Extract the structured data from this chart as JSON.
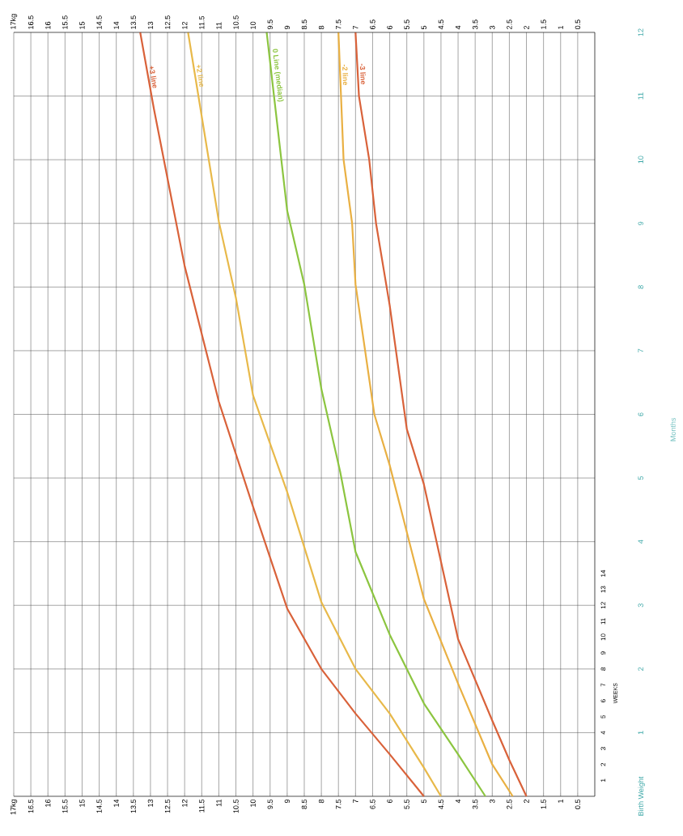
{
  "chart_data": {
    "type": "line",
    "ylabel": "Months",
    "y2label": "WEEKS",
    "xlim": [
      17,
      0
    ],
    "xticks": [
      {
        "value": 17,
        "label": "17kg"
      },
      16.5,
      16,
      15.5,
      15,
      14.5,
      14,
      13.5,
      13,
      12.5,
      12,
      11.5,
      11,
      10.5,
      10,
      9.5,
      9,
      8.5,
      8,
      7.5,
      7,
      6.5,
      6,
      5.5,
      5,
      4.5,
      4,
      3.5,
      3,
      2.5,
      2,
      1.5,
      1,
      0.5
    ],
    "x2lim": [
      17,
      0
    ],
    "x2ticks": [
      {
        "value": 17,
        "label": "17kg"
      },
      16.5,
      16,
      15.5,
      15,
      14.5,
      14,
      13.5,
      13,
      12.5,
      12,
      11.5,
      11,
      10.5,
      10,
      9.5,
      9,
      8.5,
      8,
      7.5,
      7,
      6.5,
      6,
      5.5,
      5,
      4.5,
      4,
      3.5,
      3,
      2.5,
      2,
      1.5,
      1,
      0.5
    ],
    "ylim": [
      0,
      12
    ],
    "yticks": [
      {
        "value": 0,
        "label": "Birth Weight"
      },
      1,
      2,
      3,
      4,
      5,
      6,
      7,
      8,
      9,
      10,
      11,
      12
    ],
    "y2lim": [
      0,
      48
    ],
    "y2ticks": [
      1,
      2,
      3,
      4,
      5,
      6,
      7,
      8,
      9,
      10,
      11,
      12,
      13,
      14
    ],
    "grid": true,
    "line_style": "solid",
    "series": [
      {
        "name": "+3 line",
        "color": "#d9623a",
        "x": [
          5,
          6,
          7,
          8,
          9,
          10,
          11,
          12,
          12.9,
          13.3
        ],
        "values": [
          0,
          0.66,
          1.3,
          2.0,
          2.95,
          4.55,
          6.2,
          8.33,
          10.8,
          12
        ]
      },
      {
        "name": "+2 line",
        "color": "#e8b94a",
        "x": [
          4.5,
          5,
          6,
          7,
          8,
          9,
          10,
          10.5,
          11,
          11.9
        ],
        "values": [
          0,
          0.45,
          1.3,
          2.0,
          3.05,
          4.78,
          6.3,
          7.83,
          9.03,
          12
        ]
      },
      {
        "name": "0 Line (median)",
        "color": "#8cc540",
        "x": [
          3.2,
          4,
          5,
          6,
          7,
          7.45,
          8,
          8.5,
          9,
          9.6
        ],
        "values": [
          0,
          0.66,
          1.46,
          2.54,
          3.84,
          5.1,
          6.4,
          8.04,
          9.2,
          12
        ]
      },
      {
        "name": "-2 line",
        "color": "#e9b043",
        "x": [
          2.4,
          3,
          4,
          5,
          6,
          6.45,
          7,
          7.1,
          7.35,
          7.5
        ],
        "values": [
          0,
          0.5,
          1.77,
          3.1,
          5.2,
          6,
          8.04,
          9,
          10,
          12
        ]
      },
      {
        "name": "-3 line",
        "color": "#d9623a",
        "x": [
          2.0,
          2.5,
          3,
          4,
          5,
          5.5,
          6,
          6.4,
          6.6,
          6.9,
          7.0
        ],
        "values": [
          0,
          0.57,
          1.19,
          2.47,
          4.9,
          5.77,
          7.71,
          9,
          10,
          11,
          12
        ]
      }
    ]
  }
}
